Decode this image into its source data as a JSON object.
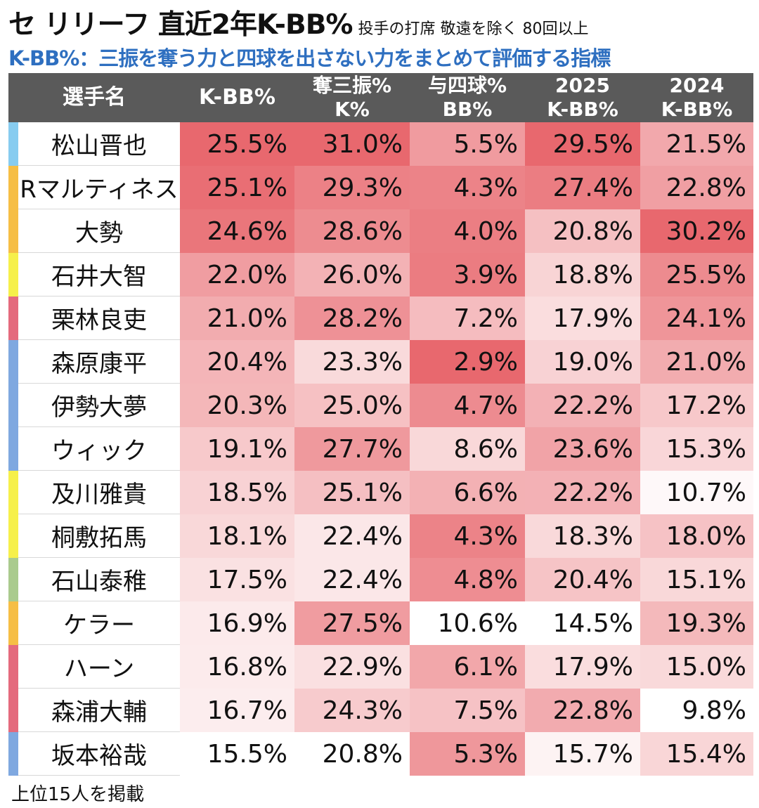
{
  "title": {
    "main": "セ リリーフ 直近2年K-BB%",
    "note": "投手の打席 敬遠を除く 80回以上"
  },
  "subtitle": "K-BB%：三振を奪う力と四球を出さない力をまとめて評価する指標",
  "footer": "上位15人を掲載",
  "colors": {
    "header_bg": "#5a5a5a",
    "subtitle": "#2e6fc0",
    "heat_low": "#ffffff",
    "heat_high": "#e8686e"
  },
  "chart_data": {
    "type": "table",
    "columns": [
      {
        "key": "name",
        "label_lines": [
          "選手名"
        ]
      },
      {
        "key": "kbb",
        "label_lines": [
          "K-BB%"
        ]
      },
      {
        "key": "k",
        "label_lines": [
          "奪三振%",
          "K%"
        ]
      },
      {
        "key": "bb",
        "label_lines": [
          "与四球%",
          "BB%"
        ]
      },
      {
        "key": "kbb2025",
        "label_lines": [
          "2025",
          "K-BB%"
        ]
      },
      {
        "key": "kbb2024",
        "label_lines": [
          "2024",
          "K-BB%"
        ]
      }
    ],
    "rows": [
      {
        "name": "松山晋也",
        "team_color": "#87ccf0",
        "kbb": "25.5%",
        "k": "31.0%",
        "bb": "5.5%",
        "kbb2025": "29.5%",
        "kbb2024": "21.5%"
      },
      {
        "name": "Rマルティネス",
        "team_color": "#f6be45",
        "kbb": "25.1%",
        "k": "29.3%",
        "bb": "4.3%",
        "kbb2025": "27.4%",
        "kbb2024": "22.8%"
      },
      {
        "name": "大勢",
        "team_color": "#f6be45",
        "kbb": "24.6%",
        "k": "28.6%",
        "bb": "4.0%",
        "kbb2025": "20.8%",
        "kbb2024": "30.2%"
      },
      {
        "name": "石井大智",
        "team_color": "#f6f04a",
        "kbb": "22.0%",
        "k": "26.0%",
        "bb": "3.9%",
        "kbb2025": "18.8%",
        "kbb2024": "25.5%"
      },
      {
        "name": "栗林良吏",
        "team_color": "#e46a7d",
        "kbb": "21.0%",
        "k": "28.2%",
        "bb": "7.2%",
        "kbb2025": "17.9%",
        "kbb2024": "24.1%"
      },
      {
        "name": "森原康平",
        "team_color": "#7fa8e0",
        "kbb": "20.4%",
        "k": "23.3%",
        "bb": "2.9%",
        "kbb2025": "19.0%",
        "kbb2024": "21.0%"
      },
      {
        "name": "伊勢大夢",
        "team_color": "#7fa8e0",
        "kbb": "20.3%",
        "k": "25.0%",
        "bb": "4.7%",
        "kbb2025": "22.2%",
        "kbb2024": "17.2%"
      },
      {
        "name": "ウィック",
        "team_color": "#7fa8e0",
        "kbb": "19.1%",
        "k": "27.7%",
        "bb": "8.6%",
        "kbb2025": "23.6%",
        "kbb2024": "15.3%"
      },
      {
        "name": "及川雅貴",
        "team_color": "#f6f04a",
        "kbb": "18.5%",
        "k": "25.1%",
        "bb": "6.6%",
        "kbb2025": "22.2%",
        "kbb2024": "10.7%"
      },
      {
        "name": "桐敷拓馬",
        "team_color": "#f6f04a",
        "kbb": "18.1%",
        "k": "22.4%",
        "bb": "4.3%",
        "kbb2025": "18.3%",
        "kbb2024": "18.0%"
      },
      {
        "name": "石山泰稚",
        "team_color": "#aacb8e",
        "kbb": "17.5%",
        "k": "22.4%",
        "bb": "4.8%",
        "kbb2025": "20.4%",
        "kbb2024": "15.1%"
      },
      {
        "name": "ケラー",
        "team_color": "#f6be45",
        "kbb": "16.9%",
        "k": "27.5%",
        "bb": "10.6%",
        "kbb2025": "14.5%",
        "kbb2024": "19.3%"
      },
      {
        "name": "ハーン",
        "team_color": "#e46a7d",
        "kbb": "16.8%",
        "k": "22.9%",
        "bb": "6.1%",
        "kbb2025": "17.9%",
        "kbb2024": "15.0%"
      },
      {
        "name": "森浦大輔",
        "team_color": "#e46a7d",
        "kbb": "16.7%",
        "k": "24.3%",
        "bb": "7.5%",
        "kbb2025": "22.8%",
        "kbb2024": "9.8%"
      },
      {
        "name": "坂本裕哉",
        "team_color": "#7fa8e0",
        "kbb": "15.5%",
        "k": "20.8%",
        "bb": "5.3%",
        "kbb2025": "15.7%",
        "kbb2024": "15.4%"
      }
    ]
  }
}
